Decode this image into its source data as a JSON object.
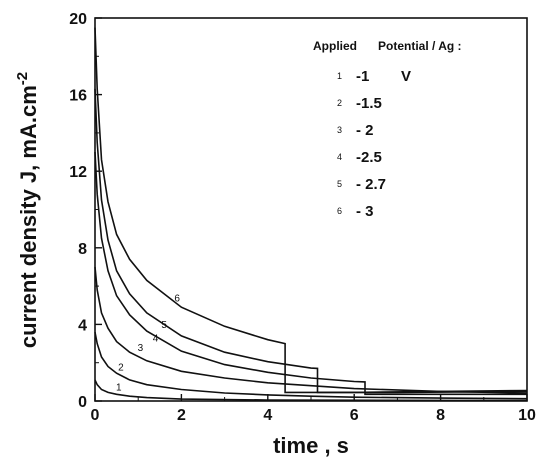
{
  "chart_data": {
    "type": "line",
    "xlabel": "time , s",
    "ylabel": "current density J, mA.cm-2",
    "ylabel_parts": {
      "main": "current density J, mA.cm",
      "sup": "-2"
    },
    "xlim": [
      0,
      10
    ],
    "ylim": [
      0,
      20
    ],
    "x_ticks": [
      "0",
      "2",
      "4",
      "6",
      "8",
      "10"
    ],
    "y_ticks": [
      "0",
      "4",
      "8",
      "12",
      "16",
      "20"
    ],
    "grid": false,
    "legend": {
      "placement": "top-right",
      "title_left": "Applied",
      "title_right": "Potential / Ag :",
      "entries": [
        {
          "num": "1",
          "value": "-1",
          "unit": "V"
        },
        {
          "num": "2",
          "value": "-1.5",
          "unit": ""
        },
        {
          "num": "3",
          "value": "- 2",
          "unit": ""
        },
        {
          "num": "4",
          "value": "-2.5",
          "unit": ""
        },
        {
          "num": "5",
          "value": "- 2.7",
          "unit": ""
        },
        {
          "num": "6",
          "value": "- 3",
          "unit": ""
        }
      ]
    },
    "series": [
      {
        "label": "1",
        "label_at": [
          0.55,
          0.55
        ],
        "x": [
          0,
          0.05,
          0.15,
          0.3,
          0.5,
          0.8,
          1.2,
          2,
          4,
          10
        ],
        "y": [
          1.1,
          0.85,
          0.6,
          0.45,
          0.35,
          0.25,
          0.18,
          0.1,
          0.05,
          0.02
        ]
      },
      {
        "label": "2",
        "label_at": [
          0.6,
          1.6
        ],
        "x": [
          0,
          0.05,
          0.15,
          0.3,
          0.5,
          0.8,
          1.2,
          2,
          3,
          4,
          5,
          6,
          8,
          10
        ],
        "y": [
          3.6,
          3.0,
          2.3,
          1.8,
          1.45,
          1.1,
          0.85,
          0.6,
          0.42,
          0.32,
          0.25,
          0.2,
          0.15,
          0.12
        ]
      },
      {
        "label": "3",
        "label_at": [
          1.05,
          2.6
        ],
        "x": [
          0,
          0.05,
          0.15,
          0.3,
          0.5,
          0.8,
          1.2,
          2,
          3,
          4,
          5,
          6,
          8,
          10
        ],
        "y": [
          7.0,
          5.8,
          4.6,
          3.8,
          3.1,
          2.55,
          2.1,
          1.55,
          1.2,
          0.95,
          0.8,
          0.65,
          0.5,
          0.42
        ]
      },
      {
        "label": "4",
        "label_at": [
          1.4,
          3.1
        ],
        "x": [
          0,
          0.05,
          0.15,
          0.3,
          0.5,
          0.8,
          1.2,
          2,
          3,
          4,
          5,
          6,
          6.25,
          6.25,
          8,
          10
        ],
        "y": [
          13.0,
          10.8,
          8.5,
          6.8,
          5.5,
          4.5,
          3.65,
          2.6,
          1.9,
          1.5,
          1.2,
          1.02,
          1.0,
          0.35,
          0.35,
          0.35
        ]
      },
      {
        "label": "5",
        "label_at": [
          1.6,
          3.8
        ],
        "x": [
          0,
          0.05,
          0.15,
          0.3,
          0.5,
          0.8,
          1.2,
          2,
          3,
          4,
          5,
          5.15,
          5.15,
          7,
          10
        ],
        "y": [
          16.3,
          13.5,
          10.5,
          8.4,
          6.8,
          5.6,
          4.6,
          3.4,
          2.55,
          2.05,
          1.72,
          1.7,
          0.45,
          0.45,
          0.5
        ]
      },
      {
        "label": "6",
        "label_at": [
          1.9,
          5.2
        ],
        "x": [
          0,
          0.05,
          0.15,
          0.3,
          0.5,
          0.8,
          1.2,
          2,
          3,
          4,
          4.4,
          4.4,
          6,
          10
        ],
        "y": [
          19.5,
          16.3,
          12.6,
          10.4,
          8.7,
          7.4,
          6.3,
          4.9,
          3.9,
          3.2,
          3.0,
          0.45,
          0.45,
          0.55
        ]
      }
    ]
  }
}
